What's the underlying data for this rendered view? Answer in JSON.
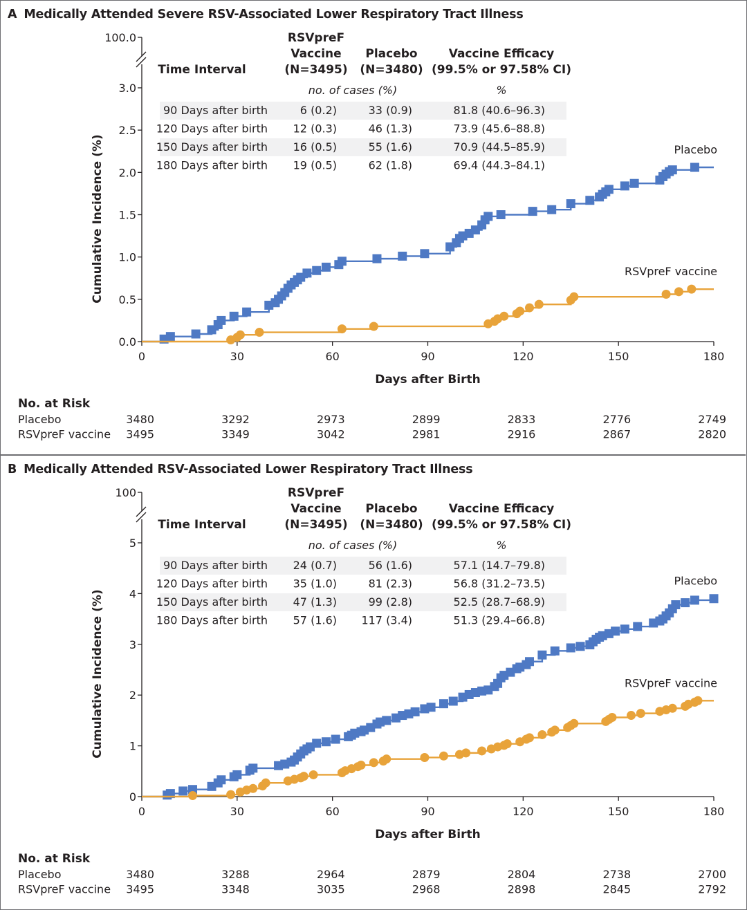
{
  "colors": {
    "placebo": "#4e79c4",
    "vaccine": "#e8a33a",
    "table_band": "#f1f1f2",
    "axis": "#231f20"
  },
  "chart_data": [
    {
      "type": "line",
      "panel_letter": "A",
      "title": "Medically Attended Severe RSV-Associated Lower Respiratory Tract Illness",
      "xlabel": "Days after Birth",
      "ylabel": "Cumulative Incidence (%)",
      "xlim": [
        0,
        180
      ],
      "ylim": [
        0,
        3.0
      ],
      "y_break_top_label": "100.0",
      "xticks": [
        "0",
        "30",
        "60",
        "90",
        "120",
        "150",
        "180"
      ],
      "xtick_values": [
        0,
        30,
        60,
        90,
        120,
        150,
        180
      ],
      "yticks": [
        "0.0",
        "0.5",
        "1.0",
        "1.5",
        "2.0",
        "2.5",
        "3.0"
      ],
      "ytick_values": [
        0,
        0.5,
        1.0,
        1.5,
        2.0,
        2.5,
        3.0
      ],
      "grid": false,
      "series": [
        {
          "name": "Placebo",
          "label": "Placebo",
          "marker": "square",
          "points": [
            [
              7,
              0.03
            ],
            [
              9,
              0.06
            ],
            [
              17,
              0.09
            ],
            [
              22,
              0.14
            ],
            [
              24,
              0.2
            ],
            [
              25,
              0.25
            ],
            [
              29,
              0.3
            ],
            [
              33,
              0.35
            ],
            [
              40,
              0.43
            ],
            [
              42,
              0.46
            ],
            [
              43,
              0.5
            ],
            [
              44,
              0.54
            ],
            [
              45,
              0.58
            ],
            [
              46,
              0.63
            ],
            [
              47,
              0.67
            ],
            [
              48,
              0.7
            ],
            [
              49,
              0.73
            ],
            [
              50,
              0.76
            ],
            [
              52,
              0.81
            ],
            [
              55,
              0.84
            ],
            [
              58,
              0.88
            ],
            [
              62,
              0.91
            ],
            [
              63,
              0.95
            ],
            [
              74,
              0.98
            ],
            [
              82,
              1.01
            ],
            [
              89,
              1.04
            ],
            [
              97,
              1.12
            ],
            [
              99,
              1.17
            ],
            [
              100,
              1.22
            ],
            [
              101,
              1.25
            ],
            [
              103,
              1.28
            ],
            [
              105,
              1.32
            ],
            [
              107,
              1.38
            ],
            [
              108,
              1.44
            ],
            [
              109,
              1.48
            ],
            [
              113,
              1.5
            ],
            [
              123,
              1.54
            ],
            [
              129,
              1.56
            ],
            [
              135,
              1.63
            ],
            [
              141,
              1.67
            ],
            [
              144,
              1.71
            ],
            [
              145,
              1.74
            ],
            [
              146,
              1.77
            ],
            [
              147,
              1.8
            ],
            [
              152,
              1.84
            ],
            [
              155,
              1.87
            ],
            [
              163,
              1.91
            ],
            [
              164,
              1.95
            ],
            [
              165,
              1.98
            ],
            [
              166,
              2.01
            ],
            [
              167,
              2.03
            ],
            [
              174,
              2.06
            ]
          ],
          "end_x": 180
        },
        {
          "name": "RSVpreF vaccine",
          "label": "RSVpreF vaccine",
          "marker": "circle",
          "points": [
            [
              28,
              0.02
            ],
            [
              30,
              0.05
            ],
            [
              31,
              0.08
            ],
            [
              37,
              0.11
            ],
            [
              63,
              0.15
            ],
            [
              73,
              0.18
            ],
            [
              109,
              0.21
            ],
            [
              111,
              0.24
            ],
            [
              112,
              0.27
            ],
            [
              114,
              0.3
            ],
            [
              118,
              0.33
            ],
            [
              119,
              0.36
            ],
            [
              122,
              0.4
            ],
            [
              125,
              0.44
            ],
            [
              135,
              0.49
            ],
            [
              136,
              0.53
            ],
            [
              165,
              0.56
            ],
            [
              169,
              0.59
            ],
            [
              173,
              0.62
            ]
          ],
          "end_x": 180
        }
      ],
      "inset_table": {
        "headers": [
          "Time Interval",
          "RSVpreF\nVaccine\n(N=3495)",
          "Placebo\n(N=3480)",
          "Vaccine Efficacy\n(99.5% or 97.58% CI)"
        ],
        "header_lines": [
          [
            "Time Interval"
          ],
          [
            "RSVpreF",
            "Vaccine",
            "(N=3495)"
          ],
          [
            "Placebo",
            "(N=3480)"
          ],
          [
            "Vaccine Efficacy",
            "(99.5% or 97.58% CI)"
          ]
        ],
        "subheaders": [
          "no. of cases (%)",
          "%"
        ],
        "rows": [
          [
            "90 Days after birth",
            "6 (0.2)",
            "33 (0.9)",
            "81.8 (40.6–96.3)"
          ],
          [
            "120 Days after birth",
            "12 (0.3)",
            "46 (1.3)",
            "73.9 (45.6–88.8)"
          ],
          [
            "150 Days after birth",
            "16 (0.5)",
            "55 (1.6)",
            "70.9 (44.5–85.9)"
          ],
          [
            "180 Days after birth",
            "19 (0.5)",
            "62 (1.8)",
            "69.4 (44.3–84.1)"
          ]
        ]
      },
      "risk_table": {
        "title": "No. at Risk",
        "rows": [
          {
            "label": "Placebo",
            "values": [
              "3480",
              "3292",
              "2973",
              "2899",
              "2833",
              "2776",
              "2749"
            ]
          },
          {
            "label": "RSVpreF vaccine",
            "values": [
              "3495",
              "3349",
              "3042",
              "2981",
              "2916",
              "2867",
              "2820"
            ]
          }
        ]
      }
    },
    {
      "type": "line",
      "panel_letter": "B",
      "title": "Medically Attended RSV-Associated Lower Respiratory Tract Illness",
      "xlabel": "Days after Birth",
      "ylabel": "Cumulative Incidence (%)",
      "xlim": [
        0,
        180
      ],
      "ylim": [
        0,
        5
      ],
      "y_break_top_label": "100",
      "xticks": [
        "0",
        "30",
        "60",
        "90",
        "120",
        "150",
        "180"
      ],
      "xtick_values": [
        0,
        30,
        60,
        90,
        120,
        150,
        180
      ],
      "yticks": [
        "0",
        "1",
        "2",
        "3",
        "4",
        "5"
      ],
      "ytick_values": [
        0,
        1,
        2,
        3,
        4,
        5
      ],
      "grid": false,
      "series": [
        {
          "name": "Placebo",
          "label": "Placebo",
          "marker": "square",
          "points": [
            [
              8,
              0.03
            ],
            [
              9,
              0.06
            ],
            [
              13,
              0.11
            ],
            [
              16,
              0.14
            ],
            [
              22,
              0.2
            ],
            [
              24,
              0.27
            ],
            [
              25,
              0.33
            ],
            [
              29,
              0.39
            ],
            [
              30,
              0.43
            ],
            [
              34,
              0.52
            ],
            [
              35,
              0.56
            ],
            [
              43,
              0.61
            ],
            [
              45,
              0.64
            ],
            [
              47,
              0.68
            ],
            [
              48,
              0.72
            ],
            [
              49,
              0.78
            ],
            [
              50,
              0.84
            ],
            [
              51,
              0.9
            ],
            [
              52,
              0.94
            ],
            [
              53,
              0.98
            ],
            [
              55,
              1.05
            ],
            [
              58,
              1.08
            ],
            [
              61,
              1.13
            ],
            [
              65,
              1.18
            ],
            [
              66,
              1.21
            ],
            [
              67,
              1.25
            ],
            [
              69,
              1.28
            ],
            [
              70,
              1.31
            ],
            [
              72,
              1.36
            ],
            [
              74,
              1.43
            ],
            [
              75,
              1.47
            ],
            [
              77,
              1.5
            ],
            [
              80,
              1.55
            ],
            [
              82,
              1.6
            ],
            [
              84,
              1.63
            ],
            [
              86,
              1.67
            ],
            [
              89,
              1.73
            ],
            [
              91,
              1.76
            ],
            [
              95,
              1.83
            ],
            [
              98,
              1.88
            ],
            [
              101,
              1.96
            ],
            [
              103,
              2.01
            ],
            [
              105,
              2.05
            ],
            [
              107,
              2.08
            ],
            [
              109,
              2.1
            ],
            [
              111,
              2.17
            ],
            [
              112,
              2.23
            ],
            [
              113,
              2.34
            ],
            [
              114,
              2.39
            ],
            [
              116,
              2.45
            ],
            [
              118,
              2.52
            ],
            [
              119,
              2.55
            ],
            [
              121,
              2.6
            ],
            [
              122,
              2.66
            ],
            [
              126,
              2.79
            ],
            [
              130,
              2.87
            ],
            [
              135,
              2.93
            ],
            [
              138,
              2.96
            ],
            [
              141,
              2.99
            ],
            [
              142,
              3.05
            ],
            [
              143,
              3.1
            ],
            [
              144,
              3.14
            ],
            [
              145,
              3.17
            ],
            [
              147,
              3.21
            ],
            [
              149,
              3.26
            ],
            [
              152,
              3.3
            ],
            [
              156,
              3.35
            ],
            [
              161,
              3.42
            ],
            [
              163,
              3.46
            ],
            [
              164,
              3.5
            ],
            [
              165,
              3.56
            ],
            [
              166,
              3.62
            ],
            [
              167,
              3.7
            ],
            [
              168,
              3.78
            ],
            [
              171,
              3.82
            ],
            [
              174,
              3.87
            ],
            [
              180,
              3.9
            ]
          ],
          "end_x": 180
        },
        {
          "name": "RSVpreF vaccine",
          "label": "RSVpreF vaccine",
          "marker": "circle",
          "points": [
            [
              16,
              0.02
            ],
            [
              28,
              0.04
            ],
            [
              31,
              0.09
            ],
            [
              33,
              0.13
            ],
            [
              35,
              0.16
            ],
            [
              38,
              0.21
            ],
            [
              39,
              0.27
            ],
            [
              46,
              0.31
            ],
            [
              48,
              0.34
            ],
            [
              50,
              0.37
            ],
            [
              51,
              0.4
            ],
            [
              54,
              0.43
            ],
            [
              63,
              0.47
            ],
            [
              64,
              0.51
            ],
            [
              66,
              0.55
            ],
            [
              68,
              0.59
            ],
            [
              69,
              0.62
            ],
            [
              73,
              0.67
            ],
            [
              76,
              0.7
            ],
            [
              77,
              0.74
            ],
            [
              89,
              0.77
            ],
            [
              95,
              0.8
            ],
            [
              100,
              0.83
            ],
            [
              102,
              0.86
            ],
            [
              107,
              0.9
            ],
            [
              110,
              0.94
            ],
            [
              112,
              0.98
            ],
            [
              114,
              1.01
            ],
            [
              115,
              1.04
            ],
            [
              119,
              1.08
            ],
            [
              121,
              1.13
            ],
            [
              122,
              1.16
            ],
            [
              126,
              1.22
            ],
            [
              129,
              1.27
            ],
            [
              130,
              1.31
            ],
            [
              134,
              1.36
            ],
            [
              135,
              1.4
            ],
            [
              136,
              1.44
            ],
            [
              146,
              1.48
            ],
            [
              147,
              1.52
            ],
            [
              148,
              1.56
            ],
            [
              154,
              1.6
            ],
            [
              157,
              1.64
            ],
            [
              163,
              1.68
            ],
            [
              165,
              1.71
            ],
            [
              167,
              1.74
            ],
            [
              171,
              1.78
            ],
            [
              172,
              1.82
            ],
            [
              174,
              1.86
            ],
            [
              175,
              1.89
            ]
          ],
          "end_x": 180
        }
      ],
      "inset_table": {
        "header_lines": [
          [
            "Time Interval"
          ],
          [
            "RSVpreF",
            "Vaccine",
            "(N=3495)"
          ],
          [
            "Placebo",
            "(N=3480)"
          ],
          [
            "Vaccine Efficacy",
            "(99.5% or 97.58% CI)"
          ]
        ],
        "subheaders": [
          "no. of cases (%)",
          "%"
        ],
        "rows": [
          [
            "90 Days after birth",
            "24 (0.7)",
            "56 (1.6)",
            "57.1 (14.7–79.8)"
          ],
          [
            "120 Days after birth",
            "35 (1.0)",
            "81 (2.3)",
            "56.8 (31.2–73.5)"
          ],
          [
            "150 Days after birth",
            "47 (1.3)",
            "99 (2.8)",
            "52.5 (28.7–68.9)"
          ],
          [
            "180 Days after birth",
            "57 (1.6)",
            "117 (3.4)",
            "51.3 (29.4–66.8)"
          ]
        ]
      },
      "risk_table": {
        "title": "No. at Risk",
        "rows": [
          {
            "label": "Placebo",
            "values": [
              "3480",
              "3288",
              "2964",
              "2879",
              "2804",
              "2738",
              "2700"
            ]
          },
          {
            "label": "RSVpreF vaccine",
            "values": [
              "3495",
              "3348",
              "3035",
              "2968",
              "2898",
              "2845",
              "2792"
            ]
          }
        ]
      }
    }
  ]
}
